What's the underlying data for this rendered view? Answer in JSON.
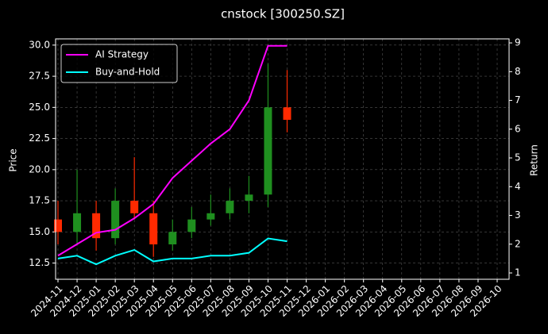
{
  "chart_data": {
    "type": "candlestick",
    "title": "cnstock [300250.SZ]",
    "ylabel": "Price",
    "y2label": "Return",
    "xticks": [
      "2024-11",
      "2024-12",
      "2025-01",
      "2025-02",
      "2025-03",
      "2025-04",
      "2025-05",
      "2025-06",
      "2025-07",
      "2025-08",
      "2025-09",
      "2025-10",
      "2025-11",
      "2025-12",
      "2026-01",
      "2026-02",
      "2026-03",
      "2026-04",
      "2026-05",
      "2026-06",
      "2026-07",
      "2026-08",
      "2026-09",
      "2026-10"
    ],
    "x": [
      "2024-11",
      "2024-12",
      "2025-01",
      "2025-02",
      "2025-03",
      "2025-04",
      "2025-05",
      "2025-06",
      "2025-07",
      "2025-08",
      "2025-09",
      "2025-10",
      "2025-11"
    ],
    "ohlc": {
      "open": [
        16,
        15,
        16.5,
        14.5,
        17.5,
        16.5,
        14,
        15,
        16,
        16.5,
        17.5,
        18,
        25
      ],
      "high": [
        17.5,
        20,
        17.5,
        18.5,
        21,
        17.5,
        16,
        17,
        18,
        18.5,
        19.5,
        28.5,
        28
      ],
      "low": [
        14,
        14,
        13.5,
        14,
        16,
        13,
        13.5,
        14.5,
        15.5,
        16,
        16.5,
        17,
        23
      ],
      "close": [
        15,
        16.5,
        14.5,
        17.5,
        16.5,
        14,
        15,
        16,
        16.5,
        17.5,
        18,
        25,
        24
      ],
      "up_color": "#1f8f1f",
      "down_color": "#ff2a00"
    },
    "series": [
      {
        "name": "AI Strategy",
        "color": "#ff00ff",
        "axis": "y2",
        "values": [
          1.6,
          2.0,
          2.4,
          2.5,
          2.9,
          3.4,
          4.3,
          4.9,
          5.5,
          6.0,
          7.0,
          8.9,
          8.9
        ]
      },
      {
        "name": "Buy-and-Hold",
        "color": "#00ffff",
        "axis": "y2",
        "values": [
          1.5,
          1.6,
          1.3,
          1.6,
          1.8,
          1.4,
          1.5,
          1.5,
          1.6,
          1.6,
          1.7,
          2.2,
          2.1
        ]
      }
    ],
    "ylim": [
      11.2,
      30.5
    ],
    "yticks": [
      12.5,
      {
        "value": 15,
        "label": "15.0"
      },
      17.5,
      {
        "value": 20,
        "label": "20.0"
      },
      22.5,
      {
        "value": 25,
        "label": "25.0"
      },
      27.5,
      {
        "value": 30,
        "label": "30.0"
      }
    ],
    "y2lim": [
      0.78,
      9.14
    ],
    "y2ticks": [
      1,
      2,
      3,
      4,
      5,
      6,
      7,
      8,
      9
    ],
    "grid": true,
    "legend": "upper left"
  }
}
